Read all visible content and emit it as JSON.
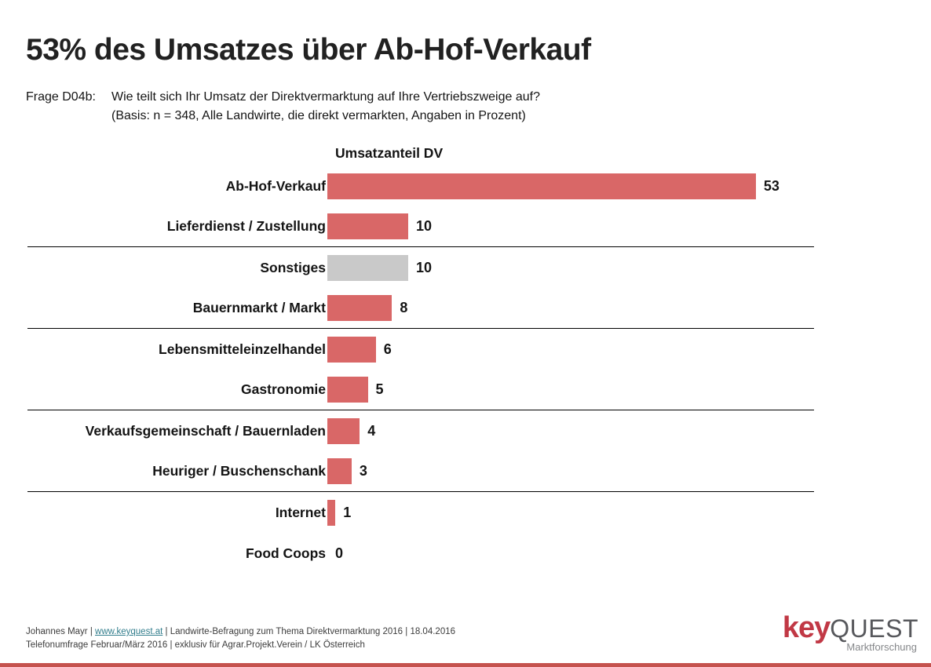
{
  "slide": {
    "title": "53% des Umsatzes über Ab-Hof-Verkauf",
    "question_label": "Frage D04b:",
    "question_line1": "Wie teilt sich Ihr Umsatz der Direktvermarktung auf Ihre Vertriebszweige auf?",
    "question_line2": "(Basis: n = 348, Alle Landwirte, die direkt vermarkten, Angaben in Prozent)"
  },
  "chart_data": {
    "type": "bar",
    "orientation": "horizontal",
    "title": "Umsatzanteil DV",
    "unit": "percent",
    "categories": [
      "Ab-Hof-Verkauf",
      "Lieferdienst / Zustellung",
      "Sonstiges",
      "Bauernmarkt / Markt",
      "Lebensmitteleinzelhandel",
      "Gastronomie",
      "Verkaufsgemeinschaft / Bauernladen",
      "Heuriger / Buschenschank",
      "Internet",
      "Food Coops"
    ],
    "values": [
      53,
      10,
      10,
      8,
      6,
      5,
      4,
      3,
      1,
      0
    ],
    "bar_colors": [
      "#D96767",
      "#D96767",
      "#C9C9C9",
      "#D96767",
      "#D96767",
      "#D96767",
      "#D96767",
      "#D96767",
      "#D96767",
      "#D96767"
    ],
    "xlim": [
      0,
      58
    ],
    "grid": "horizontal separator lines after rows 2, 4, 6, 8",
    "separators_after_rows": [
      2,
      4,
      6,
      8
    ],
    "value_label_position": "right of bar, bold"
  },
  "footer": {
    "line1_prefix": "Johannes Mayr | ",
    "link": "www.keyquest.at",
    "line1_suffix": " | Landwirte-Befragung zum Thema Direktvermarktung 2016 | 18.04.2016",
    "line2": "Telefonumfrage Februar/März 2016 | exklusiv für Agrar.Projekt.Verein / LK Österreich"
  },
  "logo": {
    "part1": "key",
    "part2": "QUEST",
    "subtitle": "Marktforschung"
  },
  "colors": {
    "accent_red": "#D96767",
    "neutral_gray": "#C9C9C9",
    "link_teal": "#337E8D",
    "logo_red": "#C13845",
    "logo_gray": "#57585C",
    "bottom_bar_red": "#C5524E",
    "text_black": "#141414"
  }
}
